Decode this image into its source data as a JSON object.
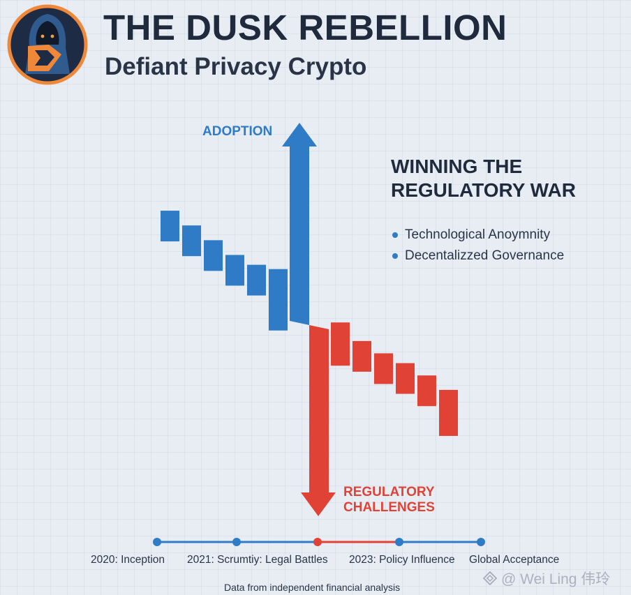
{
  "header": {
    "title": "THE DUSK REBELLION",
    "subtitle": "Defiant Privacy Crypto",
    "logo_icon": "hooded-figure-shield-icon"
  },
  "colors": {
    "adoption": "#2f7bc6",
    "regulatory": "#e04236",
    "dark": "#1f2a3d",
    "logo_ring": "#f0883a"
  },
  "chart_data": {
    "type": "bar",
    "adoption_label": "ADOPTION",
    "regulatory_label": "REGULATORY CHALLENGES",
    "adoption_series": [
      58,
      52,
      46,
      40,
      36,
      28
    ],
    "regulatory_series": [
      10,
      5,
      0,
      -4,
      -9,
      -18
    ],
    "ylim": [
      -60,
      100
    ],
    "grid": true
  },
  "panel": {
    "title": "WINNING THE REGULATORY WAR",
    "bullets": [
      "Technological Anoymnity",
      "Decentalizzed Governance"
    ]
  },
  "timeline": {
    "items": [
      {
        "label": "2020: Inception",
        "color": "#2f7bc6"
      },
      {
        "label": "2021: Scrumtiy: Legal Battles",
        "color": "#2f7bc6"
      },
      {
        "label": "",
        "color": "#e04236"
      },
      {
        "label": "2023: Policy Influence",
        "color": "#2f7bc6"
      },
      {
        "label": "Global Acceptance",
        "color": "#2f7bc6"
      }
    ]
  },
  "footer": {
    "source": "Data from independent financial analysis",
    "watermark": "@ Wei Ling 伟玲",
    "watermark_icon": "binance-diamond-icon"
  }
}
